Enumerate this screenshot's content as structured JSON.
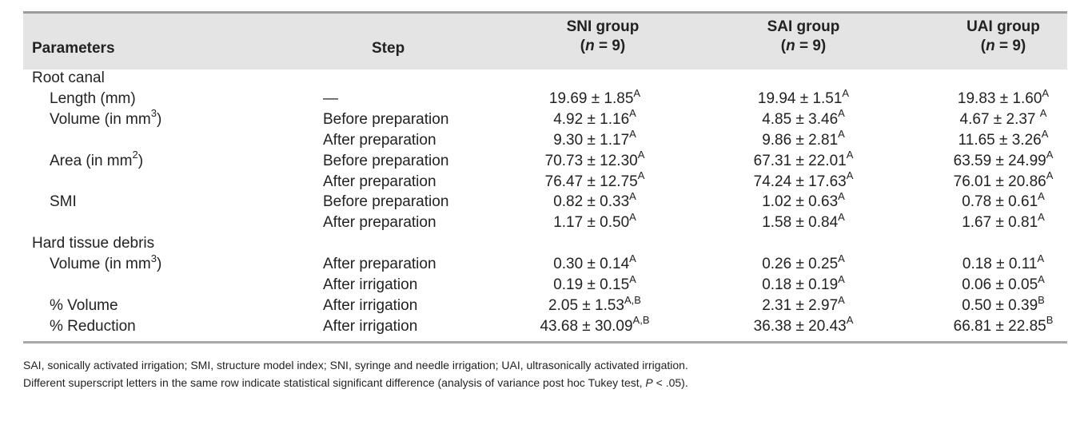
{
  "header": {
    "parameters": "Parameters",
    "step": "Step",
    "groups": [
      {
        "name": "SNI group",
        "n_label": "n",
        "n_eq": " = 9"
      },
      {
        "name": "SAI group",
        "n_label": "n",
        "n_eq": " = 9"
      },
      {
        "name": "UAI group",
        "n_label": "n",
        "n_eq": " = 9"
      }
    ],
    "open_paren": "(",
    "close_paren": ")"
  },
  "rows": [
    {
      "param": "Root canal",
      "param_sup": "",
      "param_tail": "",
      "indent": false,
      "step": "",
      "values": []
    },
    {
      "param": "Length (mm)",
      "param_sup": "",
      "param_tail": "",
      "indent": true,
      "step": "—",
      "values": [
        {
          "v": "19.69 ± 1.85",
          "s": "A"
        },
        {
          "v": "19.94 ± 1.51",
          "s": "A"
        },
        {
          "v": "19.83 ± 1.60",
          "s": "A"
        }
      ]
    },
    {
      "param": "Volume (in mm",
      "param_sup": "3",
      "param_tail": ")",
      "indent": true,
      "step": "Before preparation",
      "values": [
        {
          "v": "4.92 ± 1.16",
          "s": "A"
        },
        {
          "v": "4.85 ± 3.46",
          "s": "A"
        },
        {
          "v": "4.67 ± 2.37 ",
          "s": "A"
        }
      ]
    },
    {
      "param": "",
      "param_sup": "",
      "param_tail": "",
      "indent": true,
      "step": "After preparation",
      "values": [
        {
          "v": "9.30 ± 1.17",
          "s": "A"
        },
        {
          "v": "9.86 ± 2.81",
          "s": "A"
        },
        {
          "v": "11.65 ± 3.26",
          "s": "A"
        }
      ]
    },
    {
      "param": "Area (in mm",
      "param_sup": "2",
      "param_tail": ")",
      "indent": true,
      "step": "Before preparation",
      "values": [
        {
          "v": "70.73 ± 12.30",
          "s": "A"
        },
        {
          "v": "67.31 ± 22.01",
          "s": "A"
        },
        {
          "v": "63.59 ± 24.99",
          "s": "A"
        }
      ]
    },
    {
      "param": "",
      "param_sup": "",
      "param_tail": "",
      "indent": true,
      "step": "After preparation",
      "values": [
        {
          "v": "76.47 ± 12.75",
          "s": "A"
        },
        {
          "v": "74.24 ± 17.63",
          "s": "A"
        },
        {
          "v": "76.01 ± 20.86",
          "s": "A"
        }
      ]
    },
    {
      "param": "SMI",
      "param_sup": "",
      "param_tail": "",
      "indent": true,
      "step": "Before preparation",
      "values": [
        {
          "v": "0.82 ± 0.33",
          "s": "A"
        },
        {
          "v": "1.02 ± 0.63",
          "s": "A"
        },
        {
          "v": "0.78 ± 0.61",
          "s": "A"
        }
      ]
    },
    {
      "param": "",
      "param_sup": "",
      "param_tail": "",
      "indent": true,
      "step": "After preparation",
      "values": [
        {
          "v": "1.17 ± 0.50",
          "s": "A"
        },
        {
          "v": "1.58 ± 0.84",
          "s": "A"
        },
        {
          "v": "1.67 ± 0.81",
          "s": "A"
        }
      ]
    },
    {
      "param": "Hard tissue debris",
      "param_sup": "",
      "param_tail": "",
      "indent": false,
      "step": "",
      "values": []
    },
    {
      "param": "Volume (in mm",
      "param_sup": "3",
      "param_tail": ")",
      "indent": true,
      "step": "After preparation",
      "values": [
        {
          "v": "0.30 ± 0.14",
          "s": "A"
        },
        {
          "v": "0.26 ± 0.25",
          "s": "A"
        },
        {
          "v": "0.18 ± 0.11",
          "s": "A"
        }
      ]
    },
    {
      "param": "",
      "param_sup": "",
      "param_tail": "",
      "indent": true,
      "step": "After irrigation",
      "values": [
        {
          "v": "0.19 ± 0.15",
          "s": "A"
        },
        {
          "v": "0.18 ± 0.19",
          "s": "A"
        },
        {
          "v": "0.06 ± 0.05",
          "s": "A"
        }
      ]
    },
    {
      "param": "% Volume",
      "param_sup": "",
      "param_tail": "",
      "indent": true,
      "step": "After irrigation",
      "values": [
        {
          "v": "2.05 ± 1.53",
          "s": "A,B"
        },
        {
          "v": "2.31 ± 2.97",
          "s": "A"
        },
        {
          "v": "0.50 ± 0.39",
          "s": "B"
        }
      ]
    },
    {
      "param": "% Reduction",
      "param_sup": "",
      "param_tail": "",
      "indent": true,
      "step": "After irrigation",
      "values": [
        {
          "v": "43.68 ± 30.09",
          "s": "A,B"
        },
        {
          "v": "36.38 ± 20.43",
          "s": "A"
        },
        {
          "v": "66.81 ± 22.85",
          "s": "B"
        }
      ]
    }
  ],
  "footnotes": {
    "abbreviations": "SAI, sonically activated irrigation; SMI, structure model index; SNI, syringe and needle irrigation; UAI, ultrasonically activated irrigation.",
    "significance_a": "Different superscript letters in the same row indicate statistical significant difference (analysis of variance post hoc Tukey test, ",
    "significance_p": "P",
    "significance_b": " < .05)."
  }
}
